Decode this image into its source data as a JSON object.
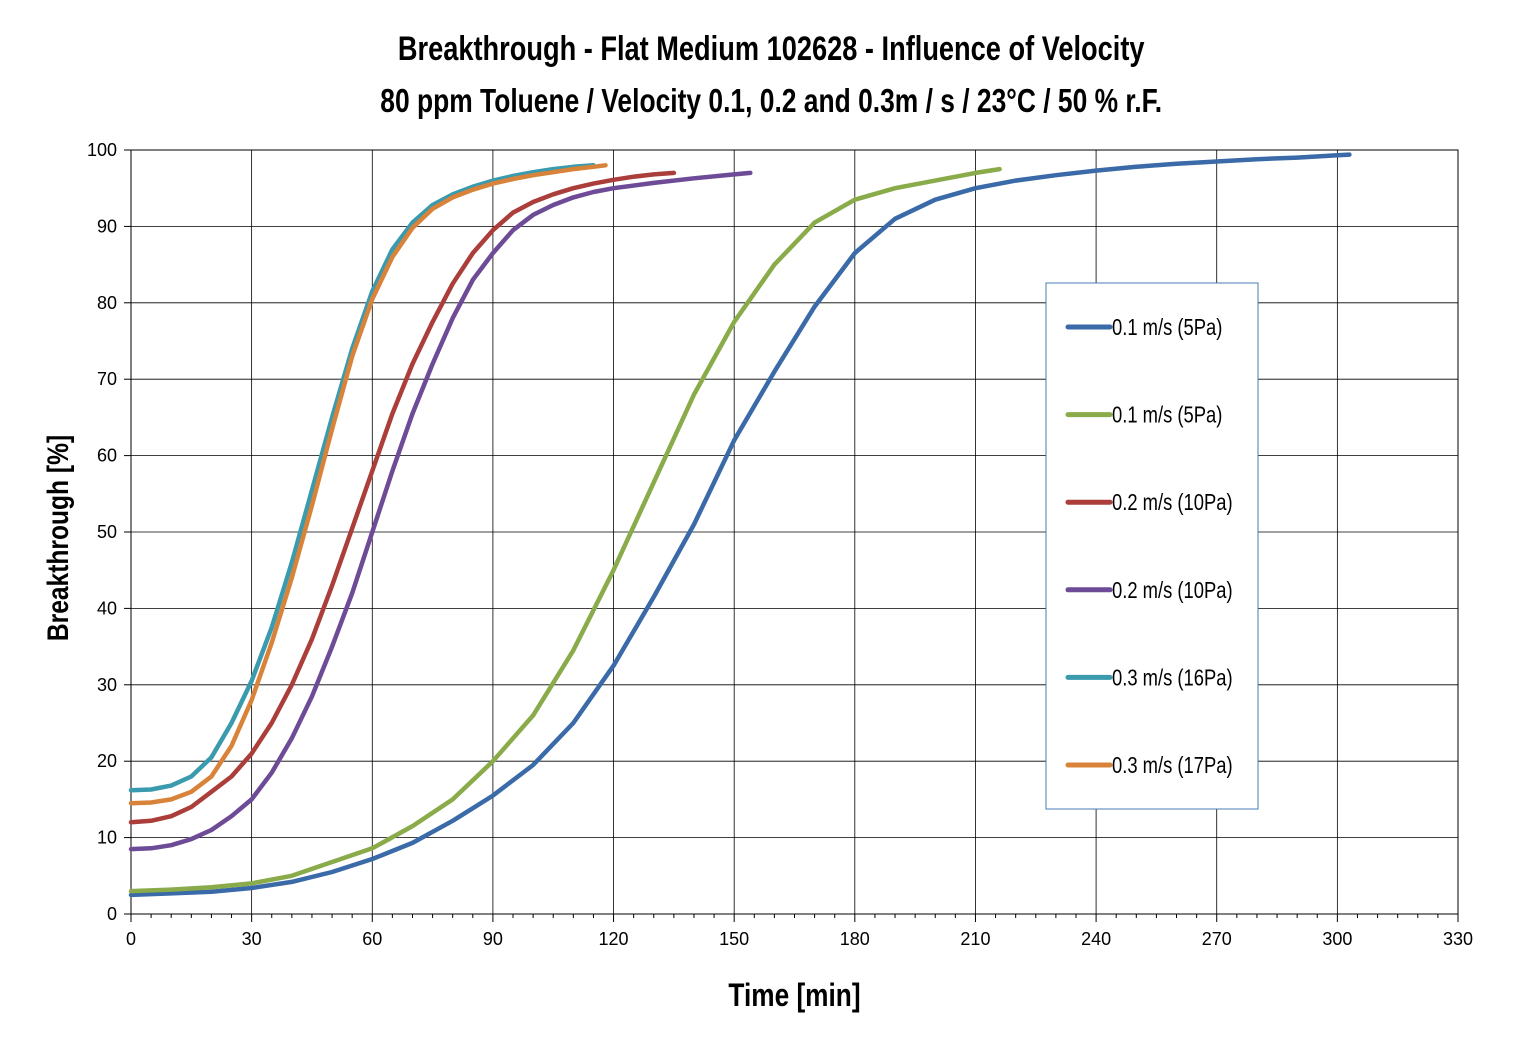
{
  "chart_data": {
    "type": "line",
    "title": "Breakthrough - Flat Medium 102628 - Influence of Velocity",
    "subtitle": "80 ppm Toluene / Velocity 0.1, 0.2 and 0.3m / s / 23°C  / 50 % r.F.",
    "xlabel": "Time  [min]",
    "ylabel": "Breakthrough [%]",
    "xlim": [
      0,
      330
    ],
    "ylim": [
      0,
      100
    ],
    "xticks": [
      0,
      30,
      60,
      90,
      120,
      150,
      180,
      210,
      240,
      270,
      300,
      330
    ],
    "yticks": [
      0,
      10,
      20,
      30,
      40,
      50,
      60,
      70,
      80,
      90,
      100
    ],
    "grid": true,
    "legend_position": "right",
    "series": [
      {
        "name": "0.1 m/s (5Pa)",
        "color": "#3a6aa8",
        "x": [
          0,
          10,
          20,
          30,
          40,
          50,
          60,
          70,
          80,
          90,
          100,
          110,
          120,
          130,
          140,
          150,
          160,
          170,
          180,
          190,
          200,
          210,
          220,
          230,
          240,
          250,
          260,
          270,
          280,
          290,
          300,
          303
        ],
        "y": [
          2.5,
          2.7,
          2.9,
          3.4,
          4.2,
          5.5,
          7.2,
          9.3,
          12.2,
          15.5,
          19.5,
          25.0,
          32.5,
          41.5,
          51.0,
          62.0,
          71.0,
          79.5,
          86.5,
          91.0,
          93.5,
          95.0,
          96.0,
          96.7,
          97.3,
          97.8,
          98.2,
          98.5,
          98.8,
          99.0,
          99.3,
          99.4
        ]
      },
      {
        "name": "0.1 m/s (5Pa)",
        "color": "#8aab4a",
        "x": [
          0,
          10,
          20,
          30,
          40,
          50,
          60,
          70,
          80,
          90,
          100,
          110,
          120,
          130,
          140,
          150,
          160,
          170,
          180,
          190,
          200,
          210,
          216
        ],
        "y": [
          3.0,
          3.2,
          3.5,
          4.0,
          5.0,
          6.8,
          8.6,
          11.5,
          15.0,
          20.0,
          26.0,
          34.5,
          45.0,
          56.5,
          68.0,
          77.5,
          85.0,
          90.5,
          93.5,
          95.0,
          96.0,
          97.0,
          97.5
        ]
      },
      {
        "name": "0.2 m/s (10Pa)",
        "color": "#ab3e3a",
        "x": [
          0,
          5,
          10,
          15,
          20,
          25,
          30,
          35,
          40,
          45,
          50,
          55,
          60,
          65,
          70,
          75,
          80,
          85,
          90,
          95,
          100,
          105,
          110,
          115,
          120,
          125,
          130,
          135
        ],
        "y": [
          12.0,
          12.2,
          12.8,
          14.0,
          16.0,
          18.0,
          21.0,
          25.0,
          30.0,
          36.0,
          43.0,
          50.5,
          58.0,
          65.5,
          72.0,
          77.5,
          82.5,
          86.5,
          89.5,
          91.8,
          93.2,
          94.2,
          95.0,
          95.6,
          96.1,
          96.5,
          96.8,
          97.0
        ]
      },
      {
        "name": "0.2 m/s (10Pa)",
        "color": "#6e4b96",
        "x": [
          0,
          5,
          10,
          15,
          20,
          25,
          30,
          35,
          40,
          45,
          50,
          55,
          60,
          65,
          70,
          75,
          80,
          85,
          90,
          95,
          100,
          105,
          110,
          115,
          120,
          130,
          140,
          150,
          154
        ],
        "y": [
          8.5,
          8.6,
          9.0,
          9.8,
          11.0,
          12.8,
          15.0,
          18.5,
          23.0,
          28.5,
          35.0,
          42.0,
          50.0,
          58.0,
          65.5,
          72.0,
          78.0,
          83.0,
          86.5,
          89.5,
          91.5,
          92.8,
          93.8,
          94.5,
          95.0,
          95.7,
          96.3,
          96.8,
          97.0
        ]
      },
      {
        "name": "0.3 m/s (16Pa)",
        "color": "#3a9aae",
        "x": [
          0,
          5,
          10,
          15,
          20,
          25,
          30,
          35,
          40,
          45,
          50,
          55,
          60,
          65,
          70,
          75,
          80,
          85,
          90,
          95,
          100,
          105,
          110,
          115
        ],
        "y": [
          16.2,
          16.3,
          16.8,
          18.0,
          20.5,
          25.0,
          30.5,
          37.5,
          46.0,
          55.5,
          65.0,
          74.0,
          81.5,
          87.0,
          90.5,
          92.8,
          94.2,
          95.2,
          96.0,
          96.6,
          97.1,
          97.5,
          97.8,
          98.0
        ]
      },
      {
        "name": "0.3 m/s (17Pa)",
        "color": "#d9833a",
        "x": [
          0,
          5,
          10,
          15,
          20,
          25,
          30,
          35,
          40,
          45,
          50,
          55,
          60,
          65,
          70,
          75,
          80,
          85,
          90,
          95,
          100,
          105,
          110,
          115,
          118
        ],
        "y": [
          14.5,
          14.6,
          15.0,
          16.0,
          18.0,
          22.0,
          28.0,
          35.5,
          44.0,
          53.5,
          63.5,
          73.0,
          80.5,
          86.0,
          89.8,
          92.3,
          93.8,
          94.8,
          95.6,
          96.2,
          96.7,
          97.1,
          97.5,
          97.8,
          98.0
        ]
      }
    ]
  }
}
